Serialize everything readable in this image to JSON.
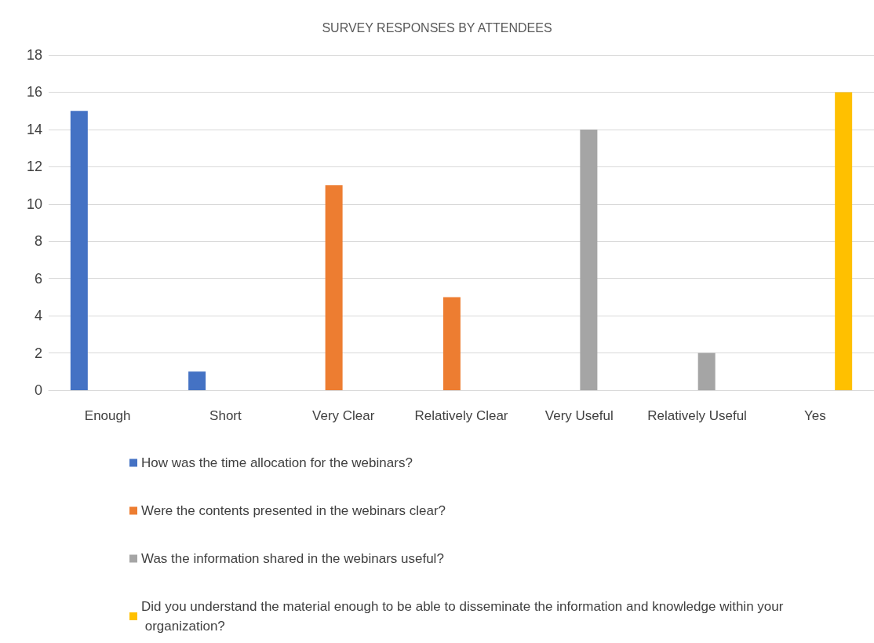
{
  "chart_data": {
    "type": "bar",
    "title": "SURVEY RESPONSES BY ATTENDEES",
    "categories": [
      "Enough",
      "Short",
      "Very Clear",
      "Relatively Clear",
      "Very Useful",
      "Relatively Useful",
      "Yes"
    ],
    "series": [
      {
        "name": "How was the time allocation for the webinars?",
        "color": "#4472c4",
        "values": [
          15,
          1,
          null,
          null,
          null,
          null,
          null
        ]
      },
      {
        "name": "Were the contents presented in the webinars clear?",
        "color": "#ed7d31",
        "values": [
          null,
          null,
          11,
          5,
          null,
          null,
          null
        ]
      },
      {
        "name": "Was the information shared in the webinars useful?",
        "color": "#a5a5a5",
        "values": [
          null,
          null,
          null,
          null,
          14,
          2,
          null
        ]
      },
      {
        "name": "Did you understand the material enough to be able to disseminate the information and knowledge within your organization?",
        "color": "#ffc000",
        "values": [
          null,
          null,
          null,
          null,
          null,
          null,
          16
        ]
      }
    ],
    "ylim": [
      0,
      18
    ],
    "yticks": [
      0,
      2,
      4,
      6,
      8,
      10,
      12,
      14,
      16,
      18
    ],
    "grid": "y",
    "legend": "bottom"
  }
}
